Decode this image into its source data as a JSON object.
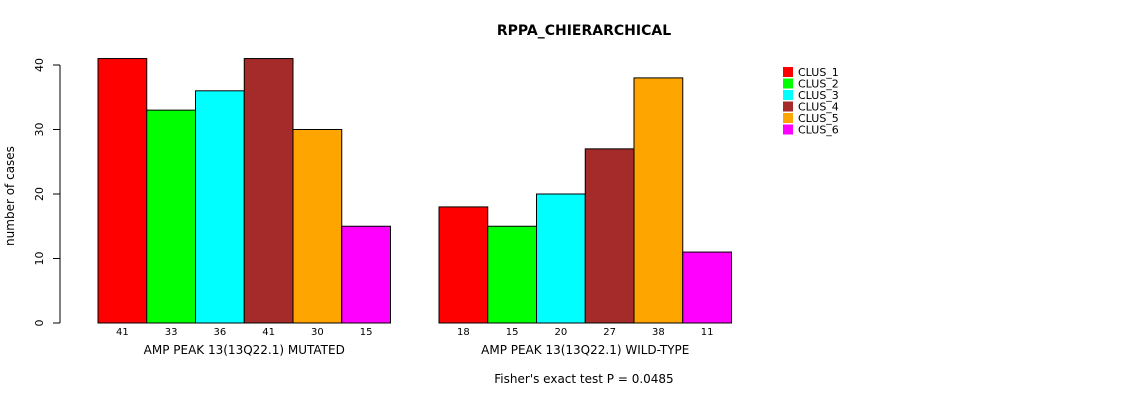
{
  "chart_data": {
    "type": "bar",
    "title": "RPPA_CHIERARCHICAL",
    "ylabel": "number of cases",
    "xlabel": "",
    "ylim": [
      0,
      40
    ],
    "yticks": [
      0,
      10,
      20,
      30,
      40
    ],
    "groups": [
      "AMP PEAK 13(13Q22.1) MUTATED",
      "AMP PEAK 13(13Q22.1) WILD-TYPE"
    ],
    "series": [
      {
        "name": "CLUS_1",
        "color": "#ff0000",
        "values": [
          41,
          18
        ]
      },
      {
        "name": "CLUS_2",
        "color": "#00ff00",
        "values": [
          33,
          15
        ]
      },
      {
        "name": "CLUS_3",
        "color": "#00ffff",
        "values": [
          36,
          20
        ]
      },
      {
        "name": "CLUS_4",
        "color": "#a52a2a",
        "values": [
          41,
          27
        ]
      },
      {
        "name": "CLUS_5",
        "color": "#ffa500",
        "values": [
          30,
          38
        ]
      },
      {
        "name": "CLUS_6",
        "color": "#ff00ff",
        "values": [
          15,
          11
        ]
      }
    ],
    "legend_position": "top-right",
    "footnote": "Fisher's exact test P = 0.0485"
  }
}
